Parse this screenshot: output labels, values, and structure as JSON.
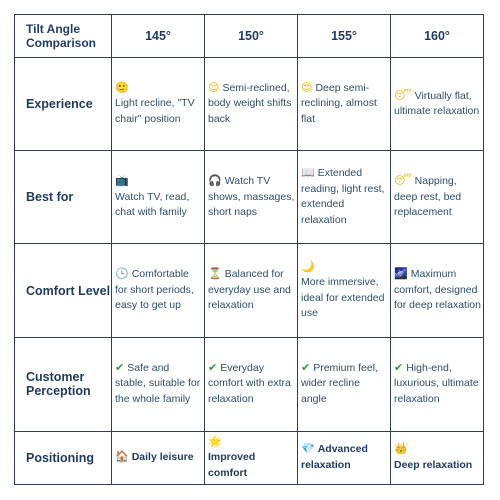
{
  "header": {
    "corner": "Tilt Angle Comparison",
    "columns": [
      "145°",
      "150°",
      "155°",
      "160°"
    ]
  },
  "rows": [
    {
      "label": "Experience",
      "cells": [
        {
          "icon": "🙂",
          "icon_name": "slightly-smiling-face-icon",
          "text": "Light recline, \"TV chair\" position"
        },
        {
          "icon": "😌",
          "icon_name": "relieved-face-icon",
          "text": "Semi-reclined, body weight shifts back"
        },
        {
          "icon": "😍",
          "icon_name": "heart-eyes-face-icon",
          "text": "Deep semi-reclining, almost flat"
        },
        {
          "icon": "😴",
          "icon_name": "sleeping-face-icon",
          "text": "Virtually flat, ultimate relaxation"
        }
      ]
    },
    {
      "label": "Best for",
      "cells": [
        {
          "icon": "📺",
          "icon_name": "television-icon",
          "text": "Watch TV, read, chat with family"
        },
        {
          "icon": "🎧",
          "icon_name": "headphones-icon",
          "text": "Watch TV shows, massages, short naps"
        },
        {
          "icon": "📖",
          "icon_name": "open-book-icon",
          "text": "Extended reading, light rest, extended relaxation"
        },
        {
          "icon": "😴",
          "icon_name": "sleeping-face-icon",
          "text": "Napping, deep rest, bed replacement"
        }
      ]
    },
    {
      "label": "Comfort Level",
      "cells": [
        {
          "icon": "🕒",
          "icon_name": "clock-icon",
          "text": "Comfortable for short periods, easy to get up"
        },
        {
          "icon": "⏳",
          "icon_name": "hourglass-icon",
          "text": "Balanced for everyday use and relaxation"
        },
        {
          "icon": "🌙",
          "icon_name": "crescent-moon-icon",
          "text": "More immersive, ideal for extended use"
        },
        {
          "icon": "🌌",
          "icon_name": "milky-way-icon",
          "text": "Maximum comfort, designed for deep relaxation"
        }
      ]
    },
    {
      "label": "Customer Perception",
      "cells": [
        {
          "icon": "✔",
          "icon_name": "check-mark-icon",
          "text": "Safe and stable, suitable for the whole family"
        },
        {
          "icon": "✔",
          "icon_name": "check-mark-icon",
          "text": "Everyday comfort with extra relaxation"
        },
        {
          "icon": "✔",
          "icon_name": "check-mark-icon",
          "text": "Premium feel, wider recline angle"
        },
        {
          "icon": "✔",
          "icon_name": "check-mark-icon",
          "text": "High-end, luxurious, ultimate relaxation"
        }
      ]
    },
    {
      "label": "Positioning",
      "cells": [
        {
          "icon": "🏠",
          "icon_name": "house-icon",
          "text": "Daily leisure"
        },
        {
          "icon": "🌟",
          "icon_name": "glowing-star-icon",
          "text": "Improved comfort"
        },
        {
          "icon": "💎",
          "icon_name": "gem-icon",
          "text": "Advanced relaxation"
        },
        {
          "icon": "👑",
          "icon_name": "crown-icon",
          "text": "Deep relaxation"
        }
      ]
    }
  ]
}
